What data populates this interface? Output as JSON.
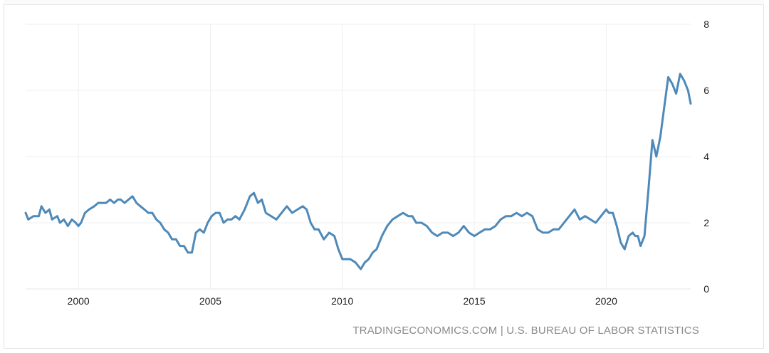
{
  "chart_data": {
    "type": "line",
    "title": "",
    "xlabel": "",
    "ylabel": "",
    "xlim": [
      1998.0,
      2023.2
    ],
    "ylim": [
      0,
      8
    ],
    "x_ticks": [
      2000,
      2005,
      2010,
      2015,
      2020
    ],
    "y_ticks": [
      0,
      2,
      4,
      6,
      8
    ],
    "grid": true,
    "line_color": "#4d89b9",
    "series": [
      {
        "name": "",
        "x": [
          1998.0,
          1998.1,
          1998.3,
          1998.5,
          1998.6,
          1998.75,
          1998.9,
          1999.0,
          1999.2,
          1999.3,
          1999.45,
          1999.6,
          1999.75,
          1999.9,
          2000.0,
          2000.1,
          2000.25,
          2000.4,
          2000.6,
          2000.75,
          2000.9,
          2001.05,
          2001.2,
          2001.35,
          2001.5,
          2001.6,
          2001.75,
          2001.9,
          2002.05,
          2002.2,
          2002.35,
          2002.5,
          2002.65,
          2002.8,
          2002.95,
          2003.1,
          2003.25,
          2003.4,
          2003.55,
          2003.7,
          2003.85,
          2004.0,
          2004.15,
          2004.3,
          2004.45,
          2004.6,
          2004.75,
          2004.9,
          2005.05,
          2005.2,
          2005.35,
          2005.5,
          2005.65,
          2005.8,
          2005.95,
          2006.1,
          2006.3,
          2006.5,
          2006.65,
          2006.8,
          2006.95,
          2007.1,
          2007.3,
          2007.5,
          2007.7,
          2007.9,
          2008.1,
          2008.3,
          2008.5,
          2008.65,
          2008.8,
          2008.95,
          2009.1,
          2009.3,
          2009.5,
          2009.7,
          2009.85,
          2010.0,
          2010.15,
          2010.3,
          2010.5,
          2010.7,
          2010.85,
          2011.0,
          2011.15,
          2011.3,
          2011.5,
          2011.7,
          2011.9,
          2012.1,
          2012.3,
          2012.5,
          2012.65,
          2012.8,
          2013.0,
          2013.2,
          2013.4,
          2013.6,
          2013.8,
          2014.0,
          2014.2,
          2014.4,
          2014.6,
          2014.8,
          2015.0,
          2015.2,
          2015.4,
          2015.6,
          2015.8,
          2016.0,
          2016.2,
          2016.4,
          2016.6,
          2016.8,
          2017.0,
          2017.2,
          2017.4,
          2017.6,
          2017.8,
          2018.0,
          2018.2,
          2018.4,
          2018.6,
          2018.8,
          2019.0,
          2019.2,
          2019.4,
          2019.6,
          2019.8,
          2020.0,
          2020.1,
          2020.25,
          2020.4,
          2020.55,
          2020.7,
          2020.85,
          2021.0,
          2021.1,
          2021.2,
          2021.3,
          2021.45,
          2021.6,
          2021.75,
          2021.9,
          2022.05,
          2022.2,
          2022.35,
          2022.5,
          2022.65,
          2022.8,
          2022.95,
          2023.1,
          2023.2
        ],
        "values": [
          2.3,
          2.1,
          2.2,
          2.2,
          2.5,
          2.3,
          2.4,
          2.1,
          2.2,
          2.0,
          2.1,
          1.9,
          2.1,
          2.0,
          1.9,
          2.0,
          2.3,
          2.4,
          2.5,
          2.6,
          2.6,
          2.6,
          2.7,
          2.6,
          2.7,
          2.7,
          2.6,
          2.7,
          2.8,
          2.6,
          2.5,
          2.4,
          2.3,
          2.3,
          2.1,
          2.0,
          1.8,
          1.7,
          1.5,
          1.5,
          1.3,
          1.3,
          1.1,
          1.1,
          1.7,
          1.8,
          1.7,
          2.0,
          2.2,
          2.3,
          2.3,
          2.0,
          2.1,
          2.1,
          2.2,
          2.1,
          2.4,
          2.8,
          2.9,
          2.6,
          2.7,
          2.3,
          2.2,
          2.1,
          2.3,
          2.5,
          2.3,
          2.4,
          2.5,
          2.4,
          2.0,
          1.8,
          1.8,
          1.5,
          1.7,
          1.6,
          1.2,
          0.9,
          0.9,
          0.9,
          0.8,
          0.6,
          0.8,
          0.9,
          1.1,
          1.2,
          1.6,
          1.9,
          2.1,
          2.2,
          2.3,
          2.2,
          2.2,
          2.0,
          2.0,
          1.9,
          1.7,
          1.6,
          1.7,
          1.7,
          1.6,
          1.7,
          1.9,
          1.7,
          1.6,
          1.7,
          1.8,
          1.8,
          1.9,
          2.1,
          2.2,
          2.2,
          2.3,
          2.2,
          2.3,
          2.2,
          1.8,
          1.7,
          1.7,
          1.8,
          1.8,
          2.0,
          2.2,
          2.4,
          2.1,
          2.2,
          2.1,
          2.0,
          2.2,
          2.4,
          2.3,
          2.3,
          1.9,
          1.4,
          1.2,
          1.6,
          1.7,
          1.6,
          1.6,
          1.3,
          1.6,
          3.0,
          4.5,
          4.0,
          4.6,
          5.5,
          6.4,
          6.2,
          5.9,
          6.5,
          6.3,
          6.0,
          5.6
        ]
      }
    ],
    "source_text": "TRADINGECONOMICS.COM | U.S. BUREAU OF LABOR STATISTICS"
  }
}
